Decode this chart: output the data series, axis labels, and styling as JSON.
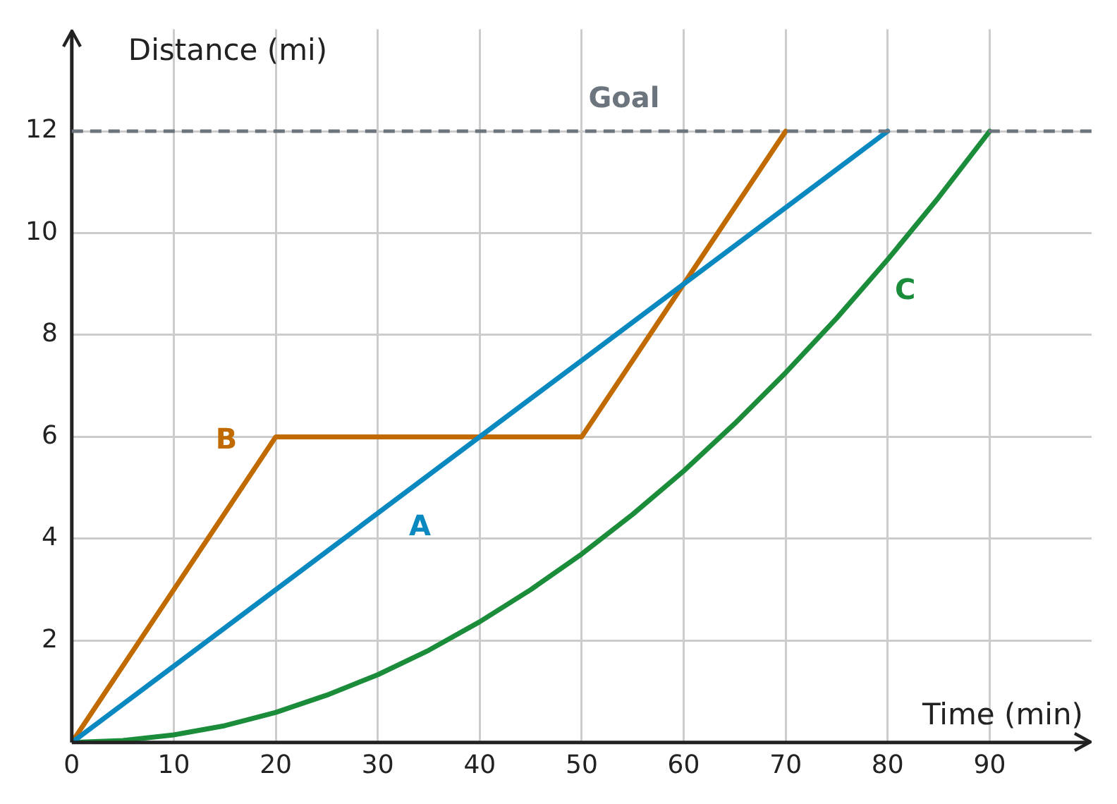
{
  "chart_data": {
    "type": "line",
    "xlabel": "Time (min)",
    "ylabel": "Distance (mi)",
    "xlim": [
      0,
      100
    ],
    "xticks": [
      0,
      10,
      20,
      30,
      40,
      50,
      60,
      70,
      80,
      90
    ],
    "ylim": [
      0,
      14
    ],
    "yticks": [
      {
        "value": 0,
        "label": null
      },
      2,
      4,
      6,
      8,
      10,
      12
    ],
    "grid": true,
    "legend": false,
    "marker": "none",
    "line_style": "solid",
    "series": [
      {
        "name": "A",
        "color": "#0a88c0",
        "x": [
          0,
          80
        ],
        "values": [
          0,
          12
        ]
      },
      {
        "name": "B",
        "color": "#c06a00",
        "x": [
          0,
          20,
          50,
          70
        ],
        "values": [
          0,
          6,
          6,
          12
        ]
      },
      {
        "name": "C",
        "color": "#1a8c3a",
        "x": [
          0,
          5,
          10,
          15,
          20,
          25,
          30,
          35,
          40,
          45,
          50,
          55,
          60,
          65,
          70,
          75,
          80,
          85,
          90
        ],
        "values": [
          0,
          0.04,
          0.15,
          0.33,
          0.59,
          0.93,
          1.33,
          1.81,
          2.37,
          3,
          3.7,
          4.48,
          5.33,
          6.26,
          7.26,
          8.33,
          9.48,
          10.7,
          12
        ]
      }
    ],
    "ref_lines": [
      {
        "axis": "y",
        "value": 12,
        "label": "Goal",
        "color": "#6c757d",
        "line_style": "dashed"
      }
    ]
  }
}
